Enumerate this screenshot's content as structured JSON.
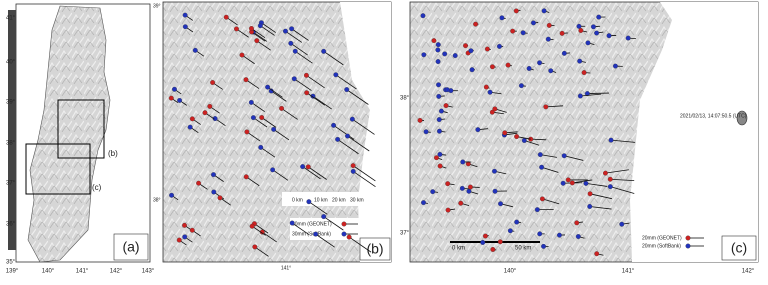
{
  "panels": [
    {
      "label": "(a)",
      "lat_labels": [
        "41°",
        "40°",
        "39°",
        "38°",
        "37°",
        "36°",
        "35°"
      ],
      "lon_labels": [
        "139°",
        "140°",
        "141°",
        "142°",
        "143°"
      ],
      "boxes": [
        "(b)",
        "(c)"
      ]
    },
    {
      "label": "(b)",
      "lat_labels": [
        "39°",
        "38°"
      ],
      "lon_labels": [
        "141°"
      ],
      "legend": [
        "30mm (GEONET)",
        "30mm (SoftBank)"
      ],
      "scale": [
        "0 km",
        "10 km",
        "20 km",
        "30 km"
      ]
    },
    {
      "label": "(c)",
      "lat_labels": [
        "38°",
        "37°"
      ],
      "lon_labels": [
        "140°",
        "141°",
        "142°"
      ],
      "timestamp": "2021/02/13, 14:07:50.5 (UTC)",
      "legend": [
        "20mm (GEONET)",
        "20mm (SoftBank)"
      ],
      "scale": [
        "0 km",
        "50 km"
      ]
    }
  ]
}
